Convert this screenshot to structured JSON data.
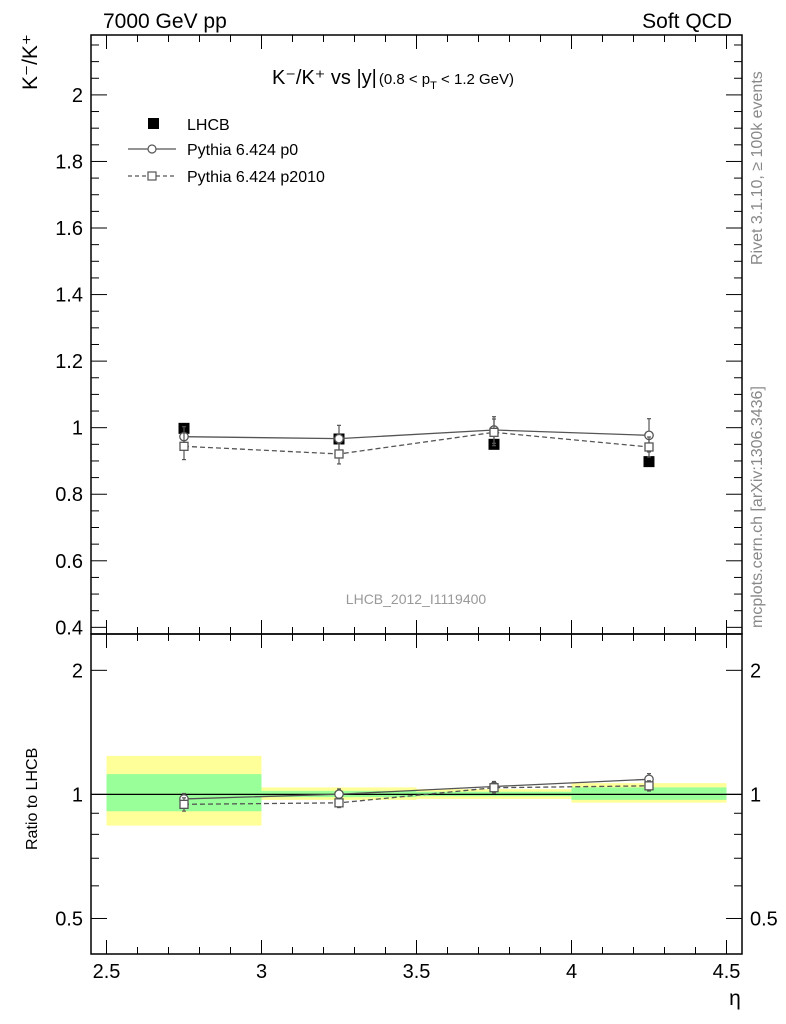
{
  "header": {
    "left": "7000 GeV pp",
    "right": "Soft QCD"
  },
  "side_labels": {
    "rivet": "Rivet 3.1.10, ≥ 100k events",
    "mcplots": "mcplots.cern.ch [arXiv:1306.3436]"
  },
  "watermark": "LHCB_2012_I1119400",
  "chart_data": [
    {
      "type": "scatter",
      "panel": "main",
      "title": "K⁻/K⁺ vs |y|(0.8 < p_T < 1.2 GeV)",
      "title_main": "K⁻/K⁺ vs |y|",
      "title_sub_a": "(0.8 < p",
      "title_sub_T": "T",
      "title_sub_b": " < 1.2 GeV)",
      "ylabel": "K⁻/K⁺",
      "xlim": [
        2.45,
        4.55
      ],
      "ylim": [
        0.38,
        2.18
      ],
      "yticks": [
        0.4,
        0.6,
        0.8,
        1,
        1.2,
        1.4,
        1.6,
        1.8,
        2
      ],
      "ytick_labels": [
        "0.4",
        "0.6",
        "0.8",
        "1",
        "1.2",
        "1.4",
        "1.6",
        "1.8",
        "2"
      ],
      "legend_position": "top-left",
      "series": [
        {
          "name": "LHCB",
          "style": "data",
          "color": "#000000",
          "x": [
            2.75,
            3.25,
            3.75,
            4.25
          ],
          "y": [
            0.998,
            0.966,
            0.95,
            0.898
          ],
          "yerr": [
            0.01,
            0.01,
            0.01,
            0.01
          ]
        },
        {
          "name": "Pythia 6.424 p0",
          "style": "solid-circle",
          "color": "#555555",
          "x": [
            2.75,
            3.25,
            3.75,
            4.25
          ],
          "y": [
            0.973,
            0.967,
            0.993,
            0.977
          ],
          "yerr": [
            0.03,
            0.04,
            0.04,
            0.05
          ]
        },
        {
          "name": "Pythia 6.424 p2010",
          "style": "dashed-square",
          "color": "#555555",
          "x": [
            2.75,
            3.25,
            3.75,
            4.25
          ],
          "y": [
            0.944,
            0.921,
            0.986,
            0.942
          ],
          "yerr": [
            0.04,
            0.03,
            0.04,
            0.03
          ]
        }
      ]
    },
    {
      "type": "scatter",
      "panel": "ratio",
      "ylabel": "Ratio to LHCB",
      "xlabel": "η",
      "xlim": [
        2.45,
        4.55
      ],
      "ylim": [
        0.41,
        2.45
      ],
      "log_y": true,
      "yticks": [
        0.5,
        1,
        2
      ],
      "ytick_labels": [
        "0.5",
        "1",
        "2"
      ],
      "xticks": [
        2.5,
        3,
        3.5,
        4,
        4.5
      ],
      "xtick_labels": [
        "2.5",
        "3",
        "3.5",
        "4",
        "4.5"
      ],
      "uncertainty_bands": [
        {
          "x0": 2.5,
          "x1": 3.0,
          "green": [
            0.91,
            1.12
          ],
          "yellow": [
            0.84,
            1.24
          ]
        },
        {
          "x0": 3.0,
          "x1": 3.5,
          "green": [
            0.985,
            1.02
          ],
          "yellow": [
            0.97,
            1.04
          ]
        },
        {
          "x0": 3.5,
          "x1": 4.0,
          "green": [
            0.99,
            1.015
          ],
          "yellow": [
            0.975,
            1.03
          ]
        },
        {
          "x0": 4.0,
          "x1": 4.5,
          "green": [
            0.97,
            1.04
          ],
          "yellow": [
            0.955,
            1.065
          ]
        }
      ],
      "series": [
        {
          "name": "Pythia 6.424 p0",
          "style": "solid-circle",
          "color": "#555555",
          "x": [
            2.75,
            3.25,
            3.75,
            4.25
          ],
          "y": [
            0.975,
            1.001,
            1.045,
            1.088
          ],
          "yerr": [
            0.03,
            0.03,
            0.03,
            0.035
          ]
        },
        {
          "name": "Pythia 6.424 p2010",
          "style": "dashed-square",
          "color": "#555555",
          "x": [
            2.75,
            3.25,
            3.75,
            4.25
          ],
          "y": [
            0.946,
            0.954,
            1.038,
            1.049
          ],
          "yerr": [
            0.035,
            0.025,
            0.03,
            0.03
          ]
        }
      ]
    }
  ]
}
